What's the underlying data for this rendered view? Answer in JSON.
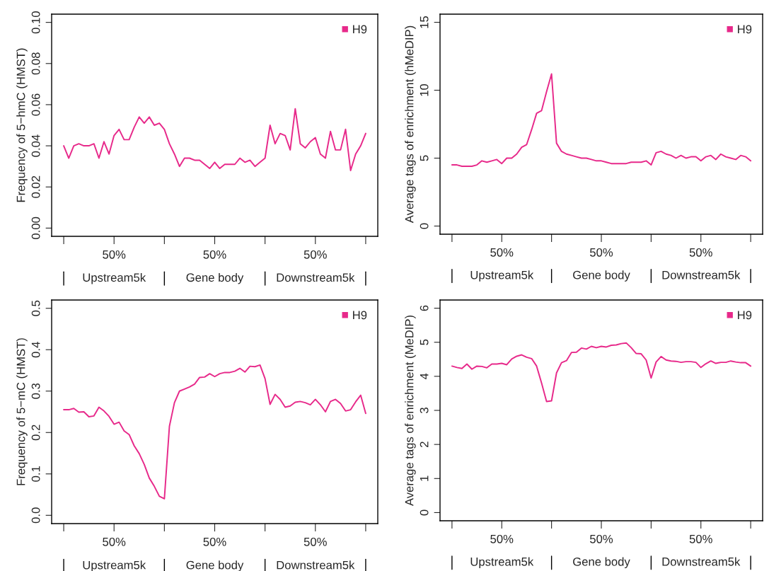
{
  "chart_data": [
    {
      "type": "line",
      "ylabel": "Frequency of 5−hmC (HMST)",
      "legend": "top right",
      "grid": false,
      "categories": [
        null,
        null,
        null,
        null,
        null,
        null,
        null,
        null,
        null,
        null,
        "50%",
        null,
        null,
        null,
        null,
        null,
        null,
        null,
        null,
        null,
        null,
        null,
        null,
        null,
        null,
        null,
        null,
        null,
        null,
        null,
        "50%",
        null,
        null,
        null,
        null,
        null,
        null,
        null,
        null,
        null,
        null,
        null,
        null,
        null,
        null,
        null,
        null,
        null,
        null,
        null,
        "50%",
        null,
        null,
        null,
        null,
        null,
        null,
        null,
        null,
        null,
        null
      ],
      "ylim": [
        -0.004,
        0.104
      ],
      "yticks": [
        {
          "value": 0,
          "label": "0.00"
        },
        {
          "value": 0.02,
          "label": "0.02"
        },
        {
          "value": 0.04,
          "label": "0.04"
        },
        {
          "value": 0.06,
          "label": "0.06"
        },
        {
          "value": 0.08,
          "label": "0.08"
        },
        {
          "value": 0.1,
          "label": "0.10"
        }
      ],
      "annotations": [
        "Upstream5k",
        "Gene body",
        "Downstream5k"
      ],
      "series": [
        {
          "name": "H9",
          "color": "#e7298a",
          "values": [
            0.04,
            0.034,
            0.04,
            0.041,
            0.04,
            0.04,
            0.041,
            0.034,
            0.042,
            0.036,
            0.045,
            0.048,
            0.043,
            0.043,
            0.049,
            0.054,
            0.051,
            0.054,
            0.05,
            0.051,
            0.048,
            0.041,
            0.036,
            0.03,
            0.034,
            0.034,
            0.033,
            0.033,
            0.031,
            0.029,
            0.032,
            0.029,
            0.031,
            0.031,
            0.031,
            0.034,
            0.032,
            0.033,
            0.03,
            0.032,
            0.034,
            0.05,
            0.041,
            0.046,
            0.045,
            0.038,
            0.058,
            0.041,
            0.039,
            0.042,
            0.044,
            0.036,
            0.034,
            0.047,
            0.038,
            0.038,
            0.048,
            0.028,
            0.036,
            0.04,
            0.046
          ]
        }
      ]
    },
    {
      "type": "line",
      "ylabel": "Average tags of enrichment (hMeDIP)",
      "legend": "top right",
      "grid": false,
      "categories": [
        null,
        null,
        null,
        null,
        null,
        null,
        null,
        null,
        null,
        null,
        "50%",
        null,
        null,
        null,
        null,
        null,
        null,
        null,
        null,
        null,
        null,
        null,
        null,
        null,
        null,
        null,
        null,
        null,
        null,
        null,
        "50%",
        null,
        null,
        null,
        null,
        null,
        null,
        null,
        null,
        null,
        null,
        null,
        null,
        null,
        null,
        null,
        null,
        null,
        null,
        null,
        "50%",
        null,
        null,
        null,
        null,
        null,
        null,
        null,
        null,
        null,
        null
      ],
      "ylim": [
        -0.6,
        15.6
      ],
      "yticks": [
        0,
        5,
        10,
        15
      ],
      "annotations": [
        "Upstream5k",
        "Gene body",
        "Downstream5k"
      ],
      "series": [
        {
          "name": "H9",
          "color": "#e7298a",
          "values": [
            4.5,
            4.5,
            4.4,
            4.4,
            4.4,
            4.5,
            4.8,
            4.7,
            4.8,
            4.9,
            4.6,
            5.0,
            5.0,
            5.3,
            5.8,
            6.0,
            7.1,
            8.3,
            8.5,
            9.9,
            11.2,
            6.1,
            5.5,
            5.3,
            5.2,
            5.1,
            5.0,
            5.0,
            4.9,
            4.8,
            4.8,
            4.7,
            4.6,
            4.6,
            4.6,
            4.6,
            4.7,
            4.7,
            4.7,
            4.8,
            4.5,
            5.4,
            5.5,
            5.3,
            5.2,
            5.0,
            5.2,
            5.0,
            5.1,
            5.1,
            4.8,
            5.1,
            5.2,
            4.9,
            5.3,
            5.1,
            5.0,
            4.9,
            5.2,
            5.1,
            4.8
          ]
        }
      ]
    },
    {
      "type": "line",
      "ylabel": "Frequency of 5−mC (HMST)",
      "legend": "top right",
      "grid": false,
      "categories": [
        null,
        null,
        null,
        null,
        null,
        null,
        null,
        null,
        null,
        null,
        "50%",
        null,
        null,
        null,
        null,
        null,
        null,
        null,
        null,
        null,
        null,
        null,
        null,
        null,
        null,
        null,
        null,
        null,
        null,
        null,
        "50%",
        null,
        null,
        null,
        null,
        null,
        null,
        null,
        null,
        null,
        null,
        null,
        null,
        null,
        null,
        null,
        null,
        null,
        null,
        null,
        "50%",
        null,
        null,
        null,
        null,
        null,
        null,
        null,
        null,
        null,
        null
      ],
      "ylim": [
        -0.02,
        0.52
      ],
      "yticks": [
        {
          "value": 0,
          "label": "0.0"
        },
        {
          "value": 0.1,
          "label": "0.1"
        },
        {
          "value": 0.2,
          "label": "0.2"
        },
        {
          "value": 0.3,
          "label": "0.3"
        },
        {
          "value": 0.4,
          "label": "0.4"
        },
        {
          "value": 0.5,
          "label": "0.5"
        }
      ],
      "annotations": [
        "Upstream5k",
        "Gene body",
        "Downstream5k"
      ],
      "series": [
        {
          "name": "H9",
          "color": "#e7298a",
          "values": [
            0.255,
            0.255,
            0.258,
            0.249,
            0.25,
            0.238,
            0.24,
            0.261,
            0.252,
            0.239,
            0.22,
            0.225,
            0.204,
            0.195,
            0.168,
            0.149,
            0.123,
            0.09,
            0.07,
            0.046,
            0.04,
            0.215,
            0.272,
            0.3,
            0.305,
            0.31,
            0.317,
            0.333,
            0.334,
            0.342,
            0.335,
            0.342,
            0.345,
            0.345,
            0.348,
            0.355,
            0.346,
            0.36,
            0.359,
            0.363,
            0.33,
            0.268,
            0.292,
            0.28,
            0.261,
            0.264,
            0.273,
            0.275,
            0.272,
            0.267,
            0.28,
            0.267,
            0.25,
            0.275,
            0.28,
            0.27,
            0.252,
            0.255,
            0.274,
            0.29,
            0.246
          ]
        }
      ]
    },
    {
      "type": "line",
      "ylabel": "Average tags of enrichment (MeDIP)",
      "legend": "top right",
      "grid": false,
      "categories": [
        null,
        null,
        null,
        null,
        null,
        null,
        null,
        null,
        null,
        null,
        "50%",
        null,
        null,
        null,
        null,
        null,
        null,
        null,
        null,
        null,
        null,
        null,
        null,
        null,
        null,
        null,
        null,
        null,
        null,
        null,
        "50%",
        null,
        null,
        null,
        null,
        null,
        null,
        null,
        null,
        null,
        null,
        null,
        null,
        null,
        null,
        null,
        null,
        null,
        null,
        null,
        "50%",
        null,
        null,
        null,
        null,
        null,
        null,
        null,
        null,
        null,
        null
      ],
      "ylim": [
        -0.24,
        6.24
      ],
      "yticks": [
        0,
        1,
        2,
        3,
        4,
        5,
        6
      ],
      "annotations": [
        "Upstream5k",
        "Gene body",
        "Downstream5k"
      ],
      "series": [
        {
          "name": "H9",
          "color": "#e7298a",
          "values": [
            4.3,
            4.26,
            4.23,
            4.36,
            4.21,
            4.3,
            4.29,
            4.25,
            4.36,
            4.36,
            4.38,
            4.34,
            4.51,
            4.59,
            4.63,
            4.56,
            4.52,
            4.3,
            3.8,
            3.26,
            3.28,
            4.1,
            4.4,
            4.46,
            4.7,
            4.71,
            4.83,
            4.8,
            4.88,
            4.84,
            4.88,
            4.86,
            4.91,
            4.92,
            4.96,
            4.98,
            4.84,
            4.67,
            4.66,
            4.48,
            3.95,
            4.42,
            4.58,
            4.48,
            4.45,
            4.44,
            4.41,
            4.43,
            4.43,
            4.41,
            4.26,
            4.37,
            4.45,
            4.38,
            4.41,
            4.41,
            4.45,
            4.42,
            4.4,
            4.4,
            4.3
          ]
        }
      ]
    }
  ]
}
